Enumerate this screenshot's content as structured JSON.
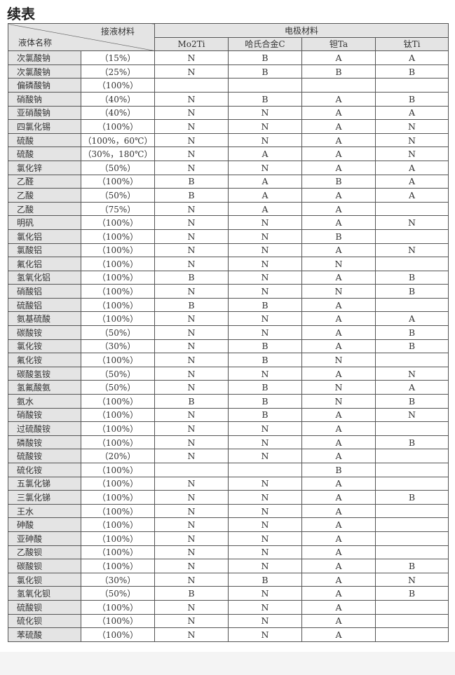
{
  "title": "续表",
  "header": {
    "liquid_material": "接液材料",
    "liquid_name": "液体名称",
    "electrode_material": "电极材料",
    "columns": [
      "Mo2Ti",
      "哈氏合金C",
      "钽Ta",
      "钛Ti"
    ]
  },
  "rows": [
    [
      "次氯酸钠",
      "（15%）",
      "N",
      "B",
      "A",
      "A"
    ],
    [
      "次氯酸钠",
      "（25%）",
      "N",
      "B",
      "B",
      "B"
    ],
    [
      "偏磷酸钠",
      "（100%）",
      "",
      "",
      "",
      ""
    ],
    [
      "硝酸钠",
      "（40%）",
      "N",
      "B",
      "A",
      "B"
    ],
    [
      "亚硝酸钠",
      "（40%）",
      "N",
      "N",
      "A",
      "A"
    ],
    [
      "四氯化锡",
      "（100%）",
      "N",
      "N",
      "A",
      "N"
    ],
    [
      "硫酸",
      "（100%，60℃）",
      "N",
      "N",
      "A",
      "N"
    ],
    [
      "硫酸",
      "（30%，180℃）",
      "N",
      "A",
      "A",
      "N"
    ],
    [
      "氯化锌",
      "（50%）",
      "N",
      "N",
      "A",
      "A"
    ],
    [
      "乙醛",
      "（100%）",
      "B",
      "A",
      "B",
      "A"
    ],
    [
      "乙酸",
      "（50%）",
      "B",
      "A",
      "A",
      "A"
    ],
    [
      "乙酸",
      "（75%）",
      "N",
      "A",
      "A",
      ""
    ],
    [
      "明矾",
      "（100%）",
      "N",
      "N",
      "A",
      "N"
    ],
    [
      "氯化铝",
      "（100%）",
      "N",
      "N",
      "B",
      ""
    ],
    [
      "氯酸铝",
      "（100%）",
      "N",
      "N",
      "A",
      "N"
    ],
    [
      "氟化铝",
      "（100%）",
      "N",
      "N",
      "N",
      ""
    ],
    [
      "氢氧化铝",
      "（100%）",
      "B",
      "N",
      "A",
      "B"
    ],
    [
      "硝酸铝",
      "（100%）",
      "N",
      "N",
      "N",
      "B"
    ],
    [
      "硫酸铝",
      "（100%）",
      "B",
      "B",
      "A",
      ""
    ],
    [
      "氨基硫酸",
      "（100%）",
      "N",
      "N",
      "A",
      "A"
    ],
    [
      "碳酸铵",
      "（50%）",
      "N",
      "N",
      "A",
      "B"
    ],
    [
      "氯化铵",
      "（30%）",
      "N",
      "B",
      "A",
      "B"
    ],
    [
      "氟化铵",
      "（100%）",
      "N",
      "B",
      "N",
      ""
    ],
    [
      "碳酸氢铵",
      "（50%）",
      "N",
      "N",
      "A",
      "N"
    ],
    [
      "氢氟酸氨",
      "（50%）",
      "N",
      "B",
      "N",
      "A"
    ],
    [
      "氨水",
      "（100%）",
      "B",
      "B",
      "N",
      "B"
    ],
    [
      "硝酸铵",
      "（100%）",
      "N",
      "B",
      "A",
      "N"
    ],
    [
      "过硫酸铵",
      "（100%）",
      "N",
      "N",
      "A",
      ""
    ],
    [
      "磷酸铵",
      "（100%）",
      "N",
      "N",
      "A",
      "B"
    ],
    [
      "硫酸铵",
      "（20%）",
      "N",
      "N",
      "A",
      ""
    ],
    [
      "硫化铵",
      "（100%）",
      "",
      "",
      "B",
      ""
    ],
    [
      "五氯化锑",
      "（100%）",
      "N",
      "N",
      "A",
      ""
    ],
    [
      "三氯化锑",
      "（100%）",
      "N",
      "N",
      "A",
      "B"
    ],
    [
      "王水",
      "（100%）",
      "N",
      "N",
      "A",
      ""
    ],
    [
      "砷酸",
      "（100%）",
      "N",
      "N",
      "A",
      ""
    ],
    [
      "亚砷酸",
      "（100%）",
      "N",
      "N",
      "A",
      ""
    ],
    [
      "乙酸钡",
      "（100%）",
      "N",
      "N",
      "A",
      ""
    ],
    [
      "碳酸钡",
      "（100%）",
      "N",
      "N",
      "A",
      "B"
    ],
    [
      "氯化钡",
      "（30%）",
      "N",
      "B",
      "A",
      "N"
    ],
    [
      "氢氧化钡",
      "（50%）",
      "B",
      "N",
      "A",
      "B"
    ],
    [
      "硫酸钡",
      "（100%）",
      "N",
      "N",
      "A",
      ""
    ],
    [
      "硫化钡",
      "（100%）",
      "N",
      "N",
      "A",
      ""
    ],
    [
      "苯硫酸",
      "（100%）",
      "N",
      "N",
      "A",
      ""
    ]
  ]
}
